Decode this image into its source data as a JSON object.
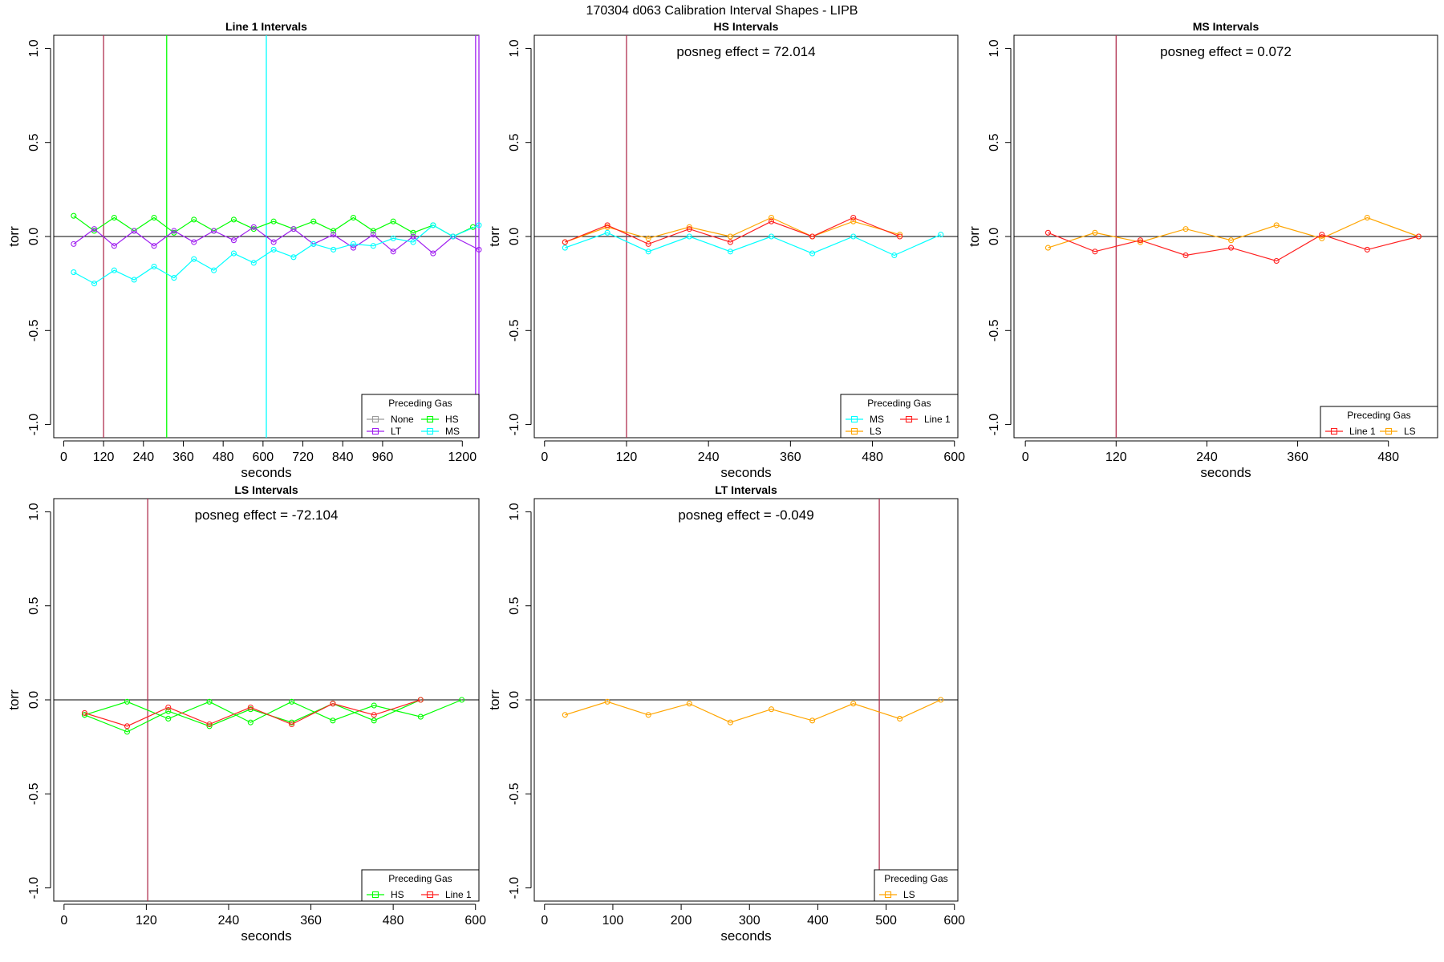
{
  "figure_title": "170304   d063   Calibration Interval Shapes - LIPB",
  "chart_data": [
    {
      "type": "line",
      "title": "Line 1 Intervals",
      "xlabel": "seconds",
      "ylabel": "torr",
      "xlim": [
        -30,
        1250
      ],
      "ylim": [
        -1.07,
        1.07
      ],
      "xticks": [
        0,
        120,
        240,
        360,
        480,
        600,
        720,
        840,
        960,
        1200
      ],
      "yticks": [
        -1.0,
        -0.5,
        0.0,
        0.5,
        1.0
      ],
      "ytick_labels": [
        "-1.0",
        "-0.5",
        "0.0",
        "0.5",
        "1.0"
      ],
      "hline": 0,
      "annotation": "",
      "vlines": [
        {
          "x": 120,
          "color": "#b03050"
        },
        {
          "x": 310,
          "color": "#00ff00"
        },
        {
          "x": 610,
          "color": "#00ffff"
        },
        {
          "x": 1240,
          "color": "#a020f0"
        },
        {
          "x": 1250,
          "color": "#a020f0"
        }
      ],
      "legend": {
        "title": "Preceding Gas",
        "columns": 2,
        "entries": [
          {
            "label": "None",
            "color": "#9a9a9a"
          },
          {
            "label": "HS",
            "color": "#00ff00"
          },
          {
            "label": "LT",
            "color": "#a020f0"
          },
          {
            "label": "MS",
            "color": "#00ffff"
          }
        ]
      },
      "series": [
        {
          "color": "#00ff00",
          "x": [
            30,
            92,
            152,
            212,
            272,
            332,
            392,
            452,
            512,
            572,
            632,
            692,
            752,
            812,
            872,
            932,
            992,
            1052,
            1112,
            1172,
            1232
          ],
          "y": [
            0.11,
            0.03,
            0.1,
            0.03,
            0.1,
            0.02,
            0.09,
            0.03,
            0.09,
            0.04,
            0.08,
            0.04,
            0.08,
            0.03,
            0.1,
            0.03,
            0.08,
            0.02,
            0.06,
            0.0,
            0.05
          ]
        },
        {
          "color": "#a020f0",
          "x": [
            30,
            92,
            152,
            212,
            272,
            332,
            392,
            452,
            512,
            572,
            632,
            692,
            752,
            812,
            872,
            932,
            992,
            1052,
            1112,
            1172,
            1250
          ],
          "y": [
            -0.04,
            0.04,
            -0.05,
            0.03,
            -0.05,
            0.03,
            -0.03,
            0.03,
            -0.02,
            0.05,
            -0.03,
            0.04,
            -0.04,
            0.01,
            -0.06,
            0.01,
            -0.08,
            0.0,
            -0.09,
            0.0,
            -0.07
          ]
        },
        {
          "color": "#00ffff",
          "x": [
            30,
            92,
            152,
            212,
            272,
            332,
            392,
            452,
            512,
            572,
            632,
            692,
            752,
            812,
            872,
            932,
            992,
            1052,
            1112,
            1172,
            1250
          ],
          "y": [
            -0.19,
            -0.25,
            -0.18,
            -0.23,
            -0.16,
            -0.22,
            -0.12,
            -0.18,
            -0.09,
            -0.14,
            -0.07,
            -0.11,
            -0.04,
            -0.07,
            -0.04,
            -0.05,
            -0.01,
            -0.03,
            0.06,
            0.0,
            0.06
          ]
        }
      ]
    },
    {
      "type": "line",
      "title": "HS Intervals",
      "xlabel": "seconds",
      "ylabel": "torr",
      "xlim": [
        -15,
        605
      ],
      "ylim": [
        -1.07,
        1.07
      ],
      "xticks": [
        0,
        120,
        240,
        360,
        480,
        600
      ],
      "yticks": [
        -1.0,
        -0.5,
        0.0,
        0.5,
        1.0
      ],
      "ytick_labels": [
        "-1.0",
        "-0.5",
        "0.0",
        "0.5",
        "1.0"
      ],
      "hline": 0,
      "annotation": "posneg effect = 72.014",
      "vlines": [
        {
          "x": 120,
          "color": "#b03050"
        }
      ],
      "legend": {
        "title": "Preceding Gas",
        "columns": 2,
        "entries": [
          {
            "label": "MS",
            "color": "#00ffff"
          },
          {
            "label": "Line 1",
            "color": "#ff2020"
          },
          {
            "label": "LS",
            "color": "#ffa500"
          }
        ]
      },
      "series": [
        {
          "color": "#00ffff",
          "x": [
            30,
            92,
            152,
            212,
            272,
            332,
            392,
            452,
            512,
            580
          ],
          "y": [
            -0.06,
            0.02,
            -0.08,
            0.0,
            -0.08,
            0.0,
            -0.09,
            0.0,
            -0.1,
            0.01
          ]
        },
        {
          "color": "#ffa500",
          "x": [
            30,
            92,
            152,
            212,
            272,
            332,
            392,
            452,
            520
          ],
          "y": [
            -0.03,
            0.05,
            -0.01,
            0.05,
            0.0,
            0.1,
            0.0,
            0.08,
            0.01
          ]
        },
        {
          "color": "#ff2020",
          "x": [
            30,
            92,
            152,
            212,
            272,
            332,
            392,
            452,
            520
          ],
          "y": [
            -0.03,
            0.06,
            -0.04,
            0.04,
            -0.03,
            0.08,
            0.0,
            0.1,
            0.0
          ]
        }
      ]
    },
    {
      "type": "line",
      "title": "MS Intervals",
      "xlabel": "seconds",
      "ylabel": "torr",
      "xlim": [
        -15,
        545
      ],
      "ylim": [
        -1.07,
        1.07
      ],
      "xticks": [
        0,
        120,
        240,
        360,
        480
      ],
      "yticks": [
        -1.0,
        -0.5,
        0.0,
        0.5,
        1.0
      ],
      "ytick_labels": [
        "-1.0",
        "-0.5",
        "0.0",
        "0.5",
        "1.0"
      ],
      "hline": 0,
      "annotation": "posneg effect = 0.072",
      "vlines": [
        {
          "x": 120,
          "color": "#b03050"
        }
      ],
      "legend": {
        "title": "Preceding Gas",
        "columns": 2,
        "entries": [
          {
            "label": "Line 1",
            "color": "#ff2020"
          },
          {
            "label": "LS",
            "color": "#ffa500"
          }
        ]
      },
      "series": [
        {
          "color": "#ffa500",
          "x": [
            30,
            92,
            152,
            212,
            272,
            332,
            392,
            452,
            520
          ],
          "y": [
            -0.06,
            0.02,
            -0.03,
            0.04,
            -0.02,
            0.06,
            -0.01,
            0.1,
            0.0
          ]
        },
        {
          "color": "#ff2020",
          "x": [
            30,
            92,
            152,
            212,
            272,
            332,
            392,
            452,
            520
          ],
          "y": [
            0.02,
            -0.08,
            -0.02,
            -0.1,
            -0.06,
            -0.13,
            0.01,
            -0.07,
            0.0
          ]
        }
      ]
    },
    {
      "type": "line",
      "title": "LS Intervals",
      "xlabel": "seconds",
      "ylabel": "torr",
      "xlim": [
        -15,
        605
      ],
      "ylim": [
        -1.07,
        1.07
      ],
      "xticks": [
        0,
        120,
        240,
        360,
        480,
        600
      ],
      "yticks": [
        -1.0,
        -0.5,
        0.0,
        0.5,
        1.0
      ],
      "ytick_labels": [
        "-1.0",
        "-0.5",
        "0.0",
        "0.5",
        "1.0"
      ],
      "hline": 0,
      "annotation": "posneg effect = -72.104",
      "vlines": [
        {
          "x": 122,
          "color": "#b03050"
        }
      ],
      "legend": {
        "title": "Preceding Gas",
        "columns": 2,
        "entries": [
          {
            "label": "HS",
            "color": "#00ff00"
          },
          {
            "label": "Line 1",
            "color": "#ff2020"
          }
        ]
      },
      "series": [
        {
          "color": "#00ff00",
          "x": [
            30,
            92,
            152,
            212,
            272,
            332,
            392,
            452,
            520,
            580
          ],
          "y": [
            -0.08,
            -0.01,
            -0.1,
            -0.01,
            -0.12,
            -0.01,
            -0.11,
            -0.03,
            -0.09,
            0.0
          ]
        },
        {
          "color": "#00ff00",
          "x": [
            30,
            92,
            152,
            212,
            272,
            332,
            392,
            452,
            520
          ],
          "y": [
            -0.08,
            -0.17,
            -0.06,
            -0.14,
            -0.05,
            -0.12,
            -0.02,
            -0.11,
            0.0
          ]
        },
        {
          "color": "#ff2020",
          "x": [
            30,
            92,
            152,
            212,
            272,
            332,
            392,
            452,
            520
          ],
          "y": [
            -0.07,
            -0.14,
            -0.04,
            -0.13,
            -0.04,
            -0.13,
            -0.02,
            -0.08,
            0.0
          ]
        }
      ]
    },
    {
      "type": "line",
      "title": "LT Intervals",
      "xlabel": "seconds",
      "ylabel": "torr",
      "xlim": [
        -15,
        605
      ],
      "ylim": [
        -1.07,
        1.07
      ],
      "xticks": [
        0,
        100,
        200,
        300,
        400,
        500,
        600
      ],
      "yticks": [
        -1.0,
        -0.5,
        0.0,
        0.5,
        1.0
      ],
      "ytick_labels": [
        "-1.0",
        "-0.5",
        "0.0",
        "0.5",
        "1.0"
      ],
      "hline": 0,
      "annotation": "posneg effect = -0.049",
      "vlines": [
        {
          "x": 490,
          "color": "#b03050"
        }
      ],
      "legend": {
        "title": "Preceding Gas",
        "columns": 1,
        "entries": [
          {
            "label": "LS",
            "color": "#ffa500"
          }
        ]
      },
      "series": [
        {
          "color": "#ffa500",
          "x": [
            30,
            92,
            152,
            212,
            272,
            332,
            392,
            452,
            520,
            580
          ],
          "y": [
            -0.08,
            -0.01,
            -0.08,
            -0.02,
            -0.12,
            -0.05,
            -0.11,
            -0.02,
            -0.1,
            0.0
          ]
        }
      ]
    }
  ]
}
